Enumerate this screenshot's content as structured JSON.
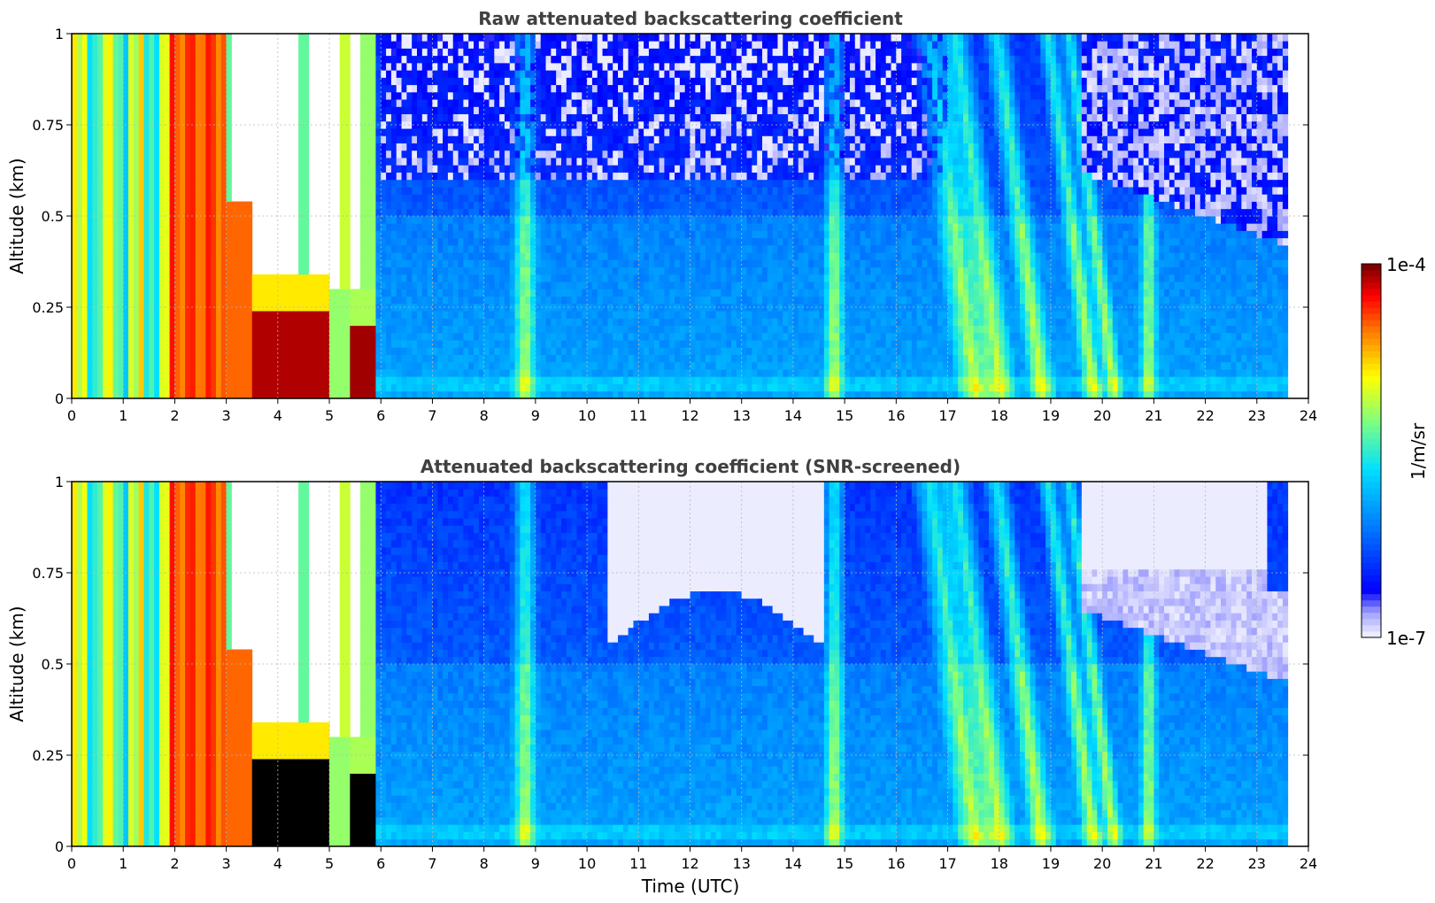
{
  "chart_data": [
    {
      "type": "heatmap",
      "title": "Raw attenuated backscattering coefficient",
      "xlabel": "",
      "ylabel": "Altitude (km)",
      "xlim": [
        0,
        24
      ],
      "ylim": [
        0,
        1
      ],
      "xticks": [
        "0",
        "1",
        "2",
        "3",
        "4",
        "5",
        "6",
        "7",
        "8",
        "9",
        "10",
        "11",
        "12",
        "13",
        "14",
        "15",
        "16",
        "17",
        "18",
        "19",
        "20",
        "21",
        "22",
        "23",
        "24"
      ],
      "yticks": [
        "0",
        "0.25",
        "0.5",
        "0.75",
        "1"
      ],
      "grid": true,
      "screened": false
    },
    {
      "type": "heatmap",
      "title": "Attenuated backscattering coefficient (SNR-screened)",
      "xlabel": "Time (UTC)",
      "ylabel": "Altitude (km)",
      "xlim": [
        0,
        24
      ],
      "ylim": [
        0,
        1
      ],
      "xticks": [
        "0",
        "1",
        "2",
        "3",
        "4",
        "5",
        "6",
        "7",
        "8",
        "9",
        "10",
        "11",
        "12",
        "13",
        "14",
        "15",
        "16",
        "17",
        "18",
        "19",
        "20",
        "21",
        "22",
        "23",
        "24"
      ],
      "yticks": [
        "0",
        "0.25",
        "0.5",
        "0.75",
        "1"
      ],
      "grid": true,
      "screened": true
    }
  ],
  "colorbar": {
    "label": "1/m/sr",
    "max_label": "1e-4",
    "min_label": "1e-7",
    "scale": "log",
    "range": [
      1e-07,
      0.0001
    ],
    "colormap": "jet",
    "colors": [
      "#ececff",
      "#9fa0ff",
      "#0000ff",
      "#0080ff",
      "#00e0ff",
      "#80ff80",
      "#ffff00",
      "#ff8000",
      "#ff0000",
      "#800000"
    ]
  },
  "data_extent_x": [
    0,
    23.6
  ]
}
